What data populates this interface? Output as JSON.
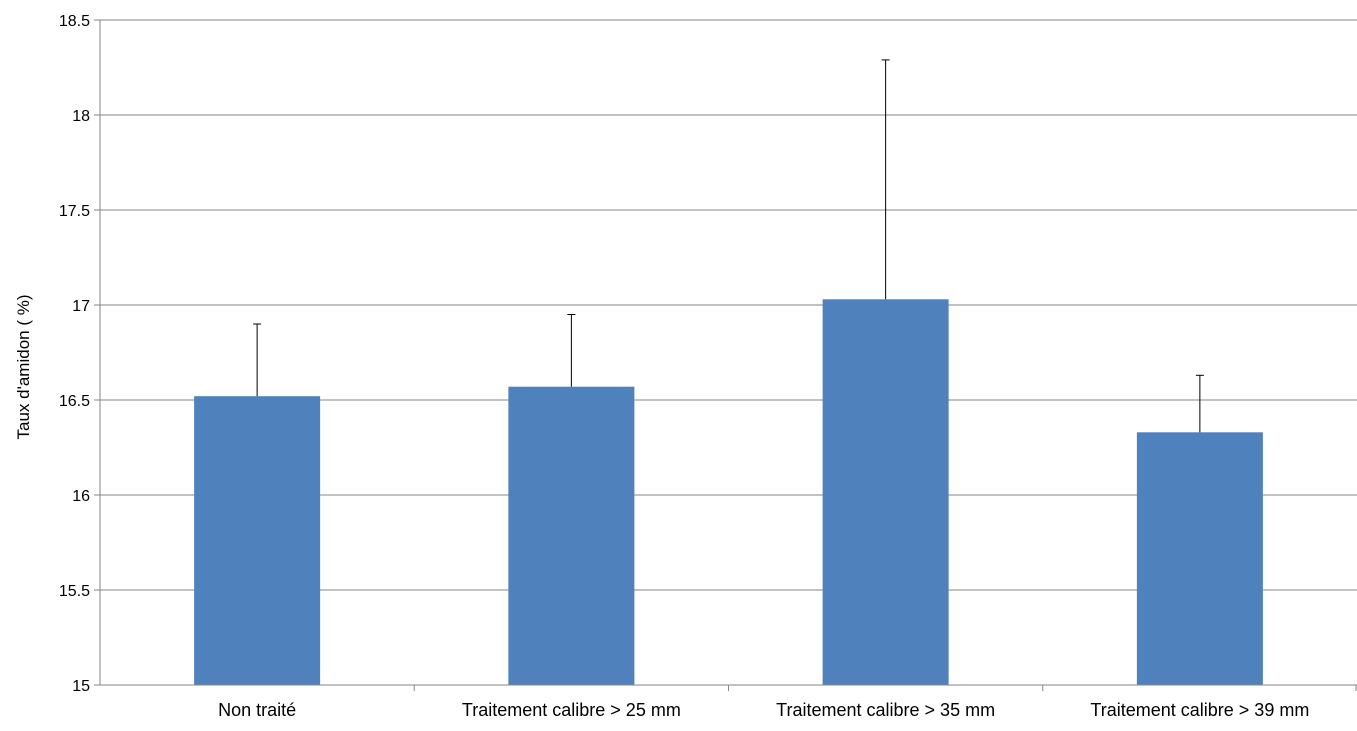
{
  "chart_data": {
    "type": "bar",
    "title": "",
    "xlabel": "",
    "ylabel": "Taux d'amidon ( %)",
    "categories": [
      "Non traité",
      "Traitement calibre > 25 mm",
      "Traitement calibre > 35 mm",
      "Traitement calibre > 39 mm"
    ],
    "values": [
      16.52,
      16.57,
      17.03,
      16.33
    ],
    "error_upper": [
      16.9,
      16.95,
      18.29,
      16.63
    ],
    "ylim": [
      15,
      18.5
    ],
    "yticks": [
      "15",
      "15.5",
      "16",
      "16.5",
      "17",
      "17.5",
      "18",
      "18.5"
    ],
    "grid": true,
    "legend": "none",
    "bar_color": "#4F81BD",
    "grid_color": "#868686"
  }
}
